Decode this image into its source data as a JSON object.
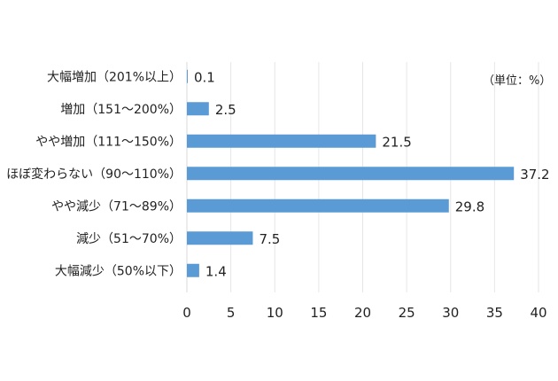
{
  "chart_data": {
    "type": "bar",
    "orientation": "horizontal",
    "categories": [
      "大幅増加（201%以上）",
      "増加（151〜200%）",
      "やや増加（111〜150%）",
      "ほぼ変わらない（90〜110%）",
      "やや減少（71〜89%）",
      "減少（51〜70%）",
      "大幅減少（50%以下）"
    ],
    "values": [
      0.1,
      2.5,
      21.5,
      37.2,
      29.8,
      7.5,
      1.4
    ],
    "value_labels": [
      "0.1",
      "2.5",
      "21.5",
      "37.2",
      "29.8",
      "7.5",
      "1.4"
    ],
    "xlim": [
      0,
      40
    ],
    "xticks": [
      0,
      5,
      10,
      15,
      20,
      25,
      30,
      35,
      40
    ],
    "grid": "vertical",
    "bar_color": "#5b9bd5",
    "unit_note": "（単位：%）"
  }
}
